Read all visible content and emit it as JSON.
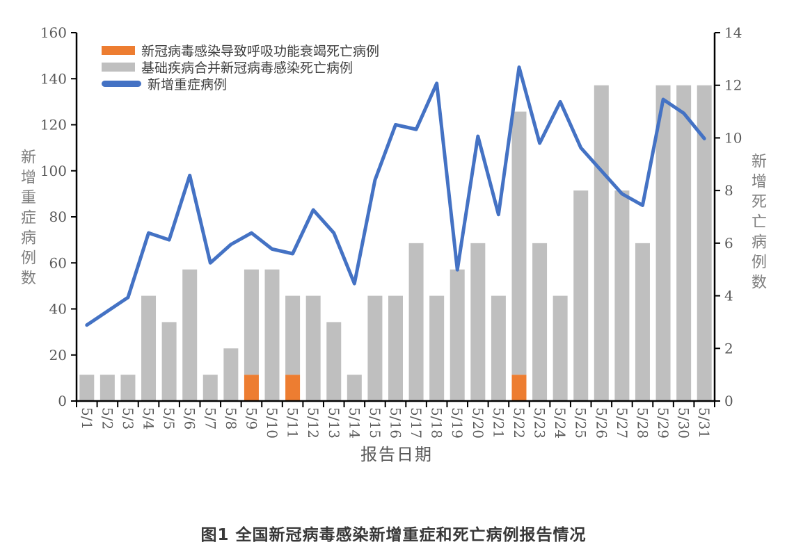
{
  "caption": "图1 全国新冠病毒感染新增重症和死亡病例报告情况",
  "chart_data": {
    "type": "combo-bar-line",
    "title": "",
    "xlabel": "报告日期",
    "legend_position": "top-left-inside",
    "grid": false,
    "categories": [
      "5/1",
      "5/2",
      "5/3",
      "5/4",
      "5/5",
      "5/6",
      "5/7",
      "5/8",
      "5/9",
      "5/10",
      "5/11",
      "5/12",
      "5/13",
      "5/14",
      "5/15",
      "5/16",
      "5/17",
      "5/18",
      "5/19",
      "5/20",
      "5/21",
      "5/22",
      "5/23",
      "5/24",
      "5/25",
      "5/26",
      "5/27",
      "5/28",
      "5/29",
      "5/30",
      "5/31"
    ],
    "left_axis": {
      "label": "新增重症病例数",
      "min": 0,
      "max": 160,
      "step": 20,
      "ticks": [
        0,
        20,
        40,
        60,
        80,
        100,
        120,
        140,
        160
      ],
      "applies_to": "line"
    },
    "right_axis": {
      "label": "新增死亡病例数",
      "min": 0,
      "max": 14,
      "step": 2,
      "ticks": [
        0,
        2,
        4,
        6,
        8,
        10,
        12,
        14
      ],
      "applies_to": "bars"
    },
    "series": [
      {
        "name": "新冠病毒感染导致呼吸功能衰竭死亡病例",
        "type": "bar",
        "stack": "deaths",
        "axis": "right",
        "color": "#ED7D31",
        "values": [
          0,
          0,
          0,
          0,
          0,
          0,
          0,
          0,
          1,
          0,
          1,
          0,
          0,
          0,
          0,
          0,
          0,
          0,
          0,
          0,
          0,
          1,
          0,
          0,
          0,
          0,
          0,
          0,
          0,
          0,
          0
        ]
      },
      {
        "name": "基础疾病合并新冠病毒感染死亡病例",
        "type": "bar",
        "stack": "deaths",
        "axis": "right",
        "color": "#BFBFBF",
        "values": [
          1,
          1,
          1,
          4,
          3,
          5,
          1,
          2,
          4,
          5,
          3,
          4,
          3,
          1,
          4,
          4,
          6,
          4,
          5,
          6,
          4,
          10,
          6,
          4,
          8,
          12,
          8,
          6,
          12,
          12,
          12
        ]
      },
      {
        "name": "新增重症病例",
        "type": "line",
        "axis": "left",
        "color": "#4472C4",
        "values": [
          33,
          39,
          45,
          73,
          70,
          98,
          60,
          68,
          73,
          66,
          64,
          83,
          73,
          51,
          96,
          120,
          118,
          138,
          57,
          115,
          81,
          145,
          112,
          130,
          110,
          100,
          90,
          85,
          131,
          125,
          114
        ]
      }
    ],
    "axis_color": "#000000",
    "tick_label_color": "#595959"
  }
}
